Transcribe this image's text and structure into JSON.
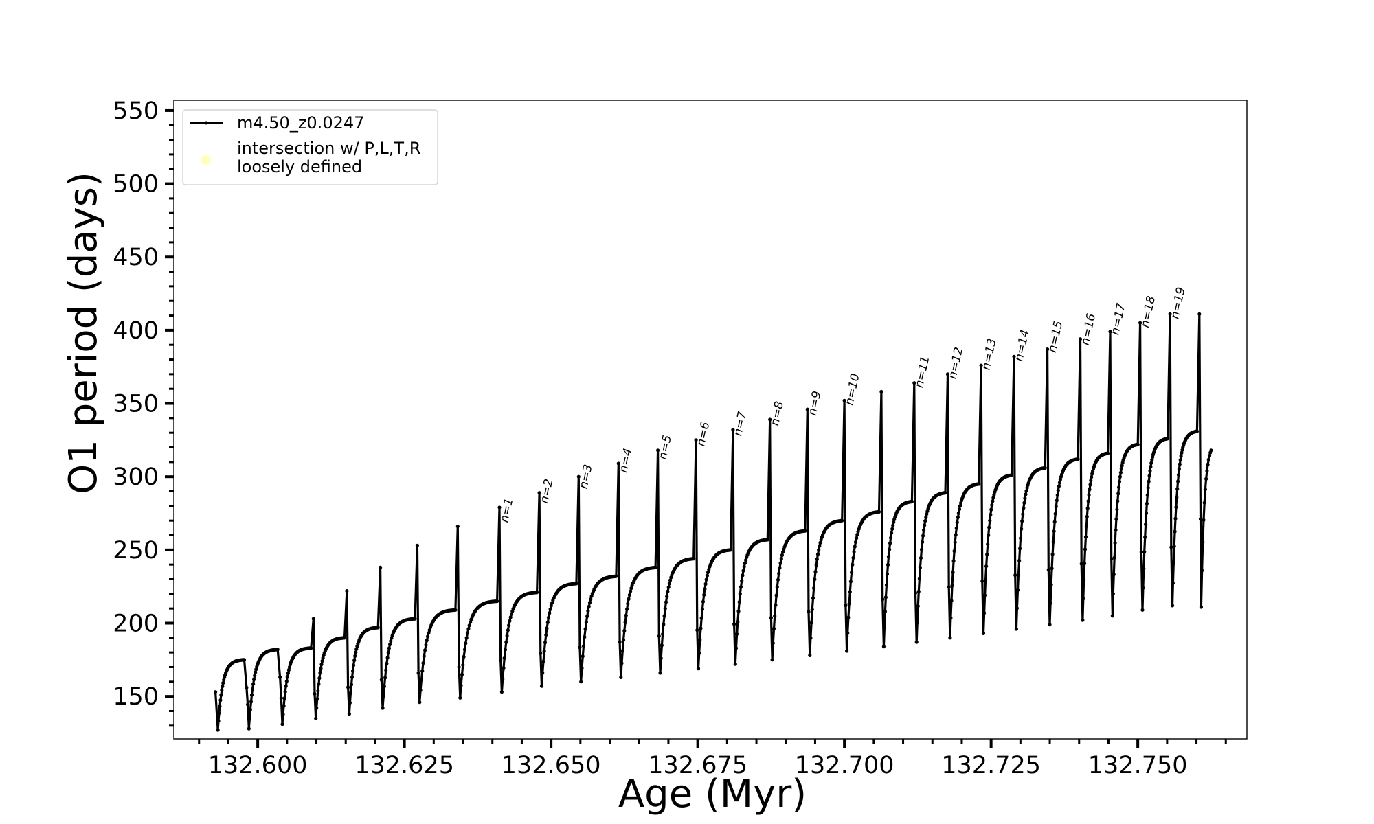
{
  "chart_data": {
    "type": "line",
    "title": "",
    "xlabel": "Age (Myr)",
    "ylabel": "O1 period (days)",
    "xlim": [
      132.5857,
      132.7686
    ],
    "ylim": [
      121,
      557
    ],
    "x_ticks": [
      132.6,
      132.625,
      132.65,
      132.675,
      132.7,
      132.725,
      132.75
    ],
    "x_tick_labels": [
      "132.600",
      "132.625",
      "132.650",
      "132.675",
      "132.700",
      "132.725",
      "132.750"
    ],
    "y_ticks": [
      150,
      200,
      250,
      300,
      350,
      400,
      450,
      500,
      550
    ],
    "y_tick_labels": [
      "150",
      "200",
      "250",
      "300",
      "350",
      "400",
      "450",
      "500",
      "550"
    ],
    "grid": false,
    "legend": {
      "position": "upper-left",
      "entries": [
        {
          "label": "m4.50_z0.0247",
          "marker": "line-dot",
          "color": "#000000"
        },
        {
          "label": "intersection w/ P,L,T,R",
          "label2": "loosely defined",
          "marker": "circle",
          "color": "#ffffb0"
        }
      ]
    },
    "series": [
      {
        "name": "m4.50_z0.0247",
        "color": "#000000",
        "pulses": [
          {
            "start": 132.5928,
            "end": 132.5981,
            "low": 127,
            "plateau": 175,
            "spike": 153
          },
          {
            "start": 132.5981,
            "end": 132.6038,
            "low": 128,
            "plateau": 182,
            "spike": 156
          },
          {
            "start": 132.6038,
            "end": 132.6095,
            "low": 131,
            "plateau": 183,
            "spike": 163
          },
          {
            "start": 132.6095,
            "end": 132.6152,
            "low": 135,
            "plateau": 190,
            "spike": 203
          },
          {
            "start": 132.6152,
            "end": 132.6209,
            "low": 138,
            "plateau": 197,
            "spike": 222
          },
          {
            "start": 132.6209,
            "end": 132.6272,
            "low": 142,
            "plateau": 203,
            "spike": 238
          },
          {
            "start": 132.6272,
            "end": 132.6341,
            "low": 146,
            "plateau": 209,
            "spike": 253
          },
          {
            "start": 132.6341,
            "end": 132.6412,
            "low": 149,
            "plateau": 215,
            "spike": 266
          },
          {
            "start": 132.6412,
            "end": 132.648,
            "low": 153,
            "plateau": 221,
            "spike": 279
          },
          {
            "start": 132.648,
            "end": 132.6547,
            "low": 157,
            "plateau": 227,
            "spike": 289
          },
          {
            "start": 132.6547,
            "end": 132.6615,
            "low": 160,
            "plateau": 232,
            "spike": 300
          },
          {
            "start": 132.6615,
            "end": 132.6682,
            "low": 163,
            "plateau": 238,
            "spike": 309
          },
          {
            "start": 132.6682,
            "end": 132.6747,
            "low": 166,
            "plateau": 244,
            "spike": 318
          },
          {
            "start": 132.6747,
            "end": 132.681,
            "low": 169,
            "plateau": 250,
            "spike": 325
          },
          {
            "start": 132.681,
            "end": 132.6873,
            "low": 172,
            "plateau": 257,
            "spike": 332
          },
          {
            "start": 132.6873,
            "end": 132.6937,
            "low": 175,
            "plateau": 263,
            "spike": 339
          },
          {
            "start": 132.6937,
            "end": 132.7,
            "low": 178,
            "plateau": 270,
            "spike": 346
          },
          {
            "start": 132.7,
            "end": 132.7063,
            "low": 181,
            "plateau": 276,
            "spike": 352
          },
          {
            "start": 132.7063,
            "end": 132.7119,
            "low": 184,
            "plateau": 283,
            "spike": 358
          },
          {
            "start": 132.7119,
            "end": 132.7176,
            "low": 187,
            "plateau": 289,
            "spike": 364
          },
          {
            "start": 132.7176,
            "end": 132.7233,
            "low": 190,
            "plateau": 295,
            "spike": 370
          },
          {
            "start": 132.7233,
            "end": 132.7289,
            "low": 193,
            "plateau": 301,
            "spike": 376
          },
          {
            "start": 132.7289,
            "end": 132.7346,
            "low": 196,
            "plateau": 306,
            "spike": 382
          },
          {
            "start": 132.7346,
            "end": 132.7402,
            "low": 199,
            "plateau": 312,
            "spike": 387
          },
          {
            "start": 132.7402,
            "end": 132.7453,
            "low": 202,
            "plateau": 316,
            "spike": 394
          },
          {
            "start": 132.7453,
            "end": 132.7504,
            "low": 205,
            "plateau": 322,
            "spike": 399
          },
          {
            "start": 132.7504,
            "end": 132.7555,
            "low": 209,
            "plateau": 326,
            "spike": 405
          },
          {
            "start": 132.7555,
            "end": 132.7605,
            "low": 212,
            "plateau": 331,
            "spike": 411
          }
        ],
        "final_rise": {
          "end": 132.7625,
          "value": 318
        }
      }
    ],
    "annotations": [
      {
        "text": "n=1",
        "x": 132.6412,
        "y": 266
      },
      {
        "text": "n=2",
        "x": 132.648,
        "y": 279
      },
      {
        "text": "n=3",
        "x": 132.6547,
        "y": 289
      },
      {
        "text": "n=4",
        "x": 132.6615,
        "y": 300
      },
      {
        "text": "n=5",
        "x": 132.6682,
        "y": 309
      },
      {
        "text": "n=6",
        "x": 132.6747,
        "y": 318
      },
      {
        "text": "n=7",
        "x": 132.681,
        "y": 325
      },
      {
        "text": "n=8",
        "x": 132.6873,
        "y": 332
      },
      {
        "text": "n=9",
        "x": 132.6937,
        "y": 339
      },
      {
        "text": "n=10",
        "x": 132.7,
        "y": 346
      },
      {
        "text": "n=11",
        "x": 132.7119,
        "y": 358
      },
      {
        "text": "n=12",
        "x": 132.7176,
        "y": 364
      },
      {
        "text": "n=13",
        "x": 132.7233,
        "y": 370
      },
      {
        "text": "n=14",
        "x": 132.7289,
        "y": 376
      },
      {
        "text": "n=15",
        "x": 132.7346,
        "y": 382
      },
      {
        "text": "n=16",
        "x": 132.7402,
        "y": 387
      },
      {
        "text": "n=17",
        "x": 132.7453,
        "y": 394
      },
      {
        "text": "n=18",
        "x": 132.7504,
        "y": 399
      },
      {
        "text": "n=19",
        "x": 132.7555,
        "y": 405
      }
    ]
  }
}
